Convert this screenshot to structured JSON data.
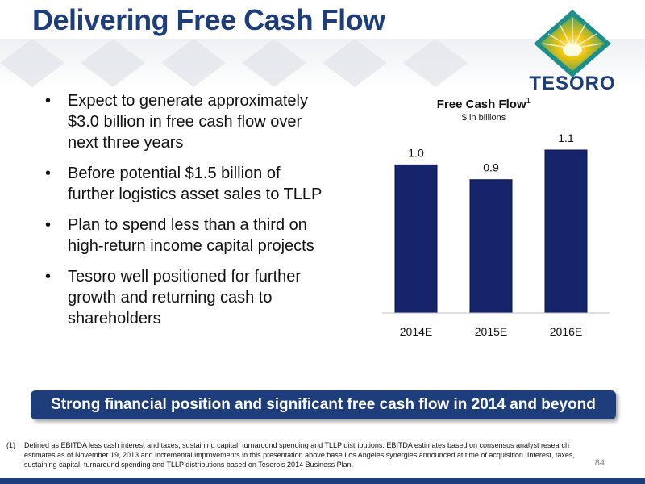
{
  "slide": {
    "title": "Delivering Free Cash Flow",
    "logo_text": "TESORO",
    "page_number": "84"
  },
  "bullets": [
    "Expect to generate approximately $3.0 billion in free cash flow over next three years",
    "Before potential $1.5 billion of further logistics asset sales to TLLP",
    "Plan to spend less than a third on high-return income capital projects",
    "Tesoro well positioned for further growth and returning cash to shareholders"
  ],
  "banner": "Strong financial position and significant free cash flow in 2014 and beyond",
  "footnote": {
    "marker": "(1)",
    "text": "Defined as EBITDA less cash interest and taxes, sustaining capital, turnaround spending and TLLP distributions.  EBITDA estimates based on consensus analyst research estimates as of November 19, 2013 and incremental improvements in this presentation above base Los Angeles synergies announced at time of acquisition.  Interest, taxes, sustaining capital, turnaround spending  and TLLP distributions based on Tesoro’s 2014 Business Plan."
  },
  "chart_data": {
    "type": "bar",
    "title": "Free Cash Flow",
    "title_superscript": "1",
    "subtitle": "$ in billions",
    "categories": [
      "2014E",
      "2015E",
      "2016E"
    ],
    "values": [
      1.0,
      0.9,
      1.1
    ],
    "value_labels": [
      "1.0",
      "0.9",
      "1.1"
    ],
    "ylim": [
      0,
      1.1
    ],
    "grid": false,
    "bar_color": "#16256b"
  },
  "colors": {
    "brand_navy": "#1d3e7a",
    "bar_navy": "#16256b",
    "logo_green": "#2e9a6a",
    "logo_yellow": "#f1c40f"
  }
}
